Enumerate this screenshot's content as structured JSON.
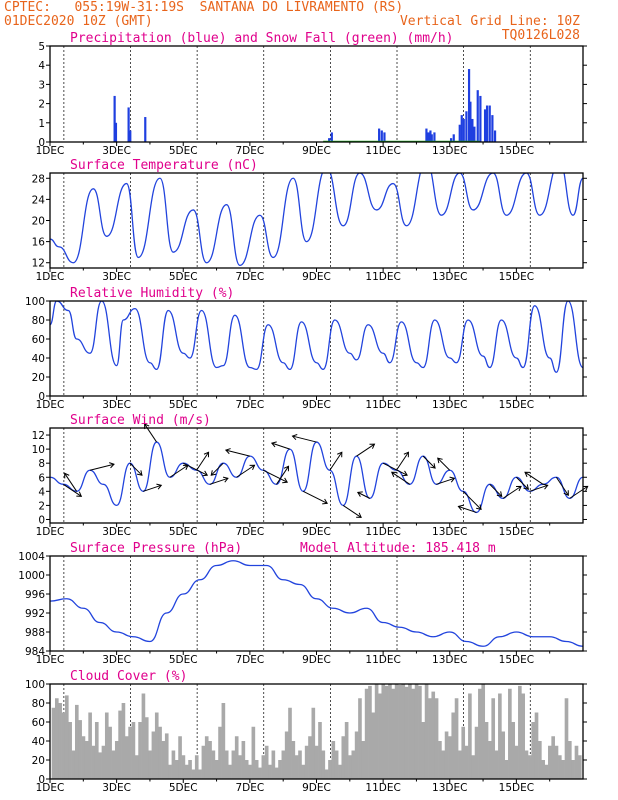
{
  "header": {
    "line1_left": "CPTEC:   055:19W-31:19S  SANTANA DO LIVRAMENTO (RS)",
    "line2_left": "01DEC2020 10Z (GMT)",
    "line2_right": "Vertical Grid Line: 10Z",
    "line3_right": "TQ0126L028"
  },
  "colors": {
    "header": "#e8641b",
    "title": "#e0008c",
    "line": "#2244dd",
    "precip": "#1f3fe0",
    "snow": "#22aa22",
    "cloud": "#a9a9a9",
    "arrow": "#000000",
    "grid": "#000000"
  },
  "x_labels": [
    "1DEC",
    "3DEC",
    "5DEC",
    "7DEC",
    "9DEC",
    "11DEC",
    "13DEC",
    "15DEC"
  ],
  "chart_data": [
    {
      "type": "bar",
      "title": "Precipitation (blue) and Snow Fall (green) (mm/h)",
      "ylim": [
        0,
        5
      ],
      "yticks": [
        "0",
        "1",
        "2",
        "3",
        "4",
        "5"
      ],
      "x_unit": "days since 01DEC 00Z",
      "series": [
        {
          "name": "Precipitation",
          "x": [
            1.94,
            1.98,
            2.36,
            2.41,
            2.86,
            8.38,
            8.46,
            9.88,
            9.96,
            10.04,
            11.3,
            11.36,
            11.42,
            11.46,
            11.54,
            12.04,
            12.12,
            12.3,
            12.36,
            12.42,
            12.5,
            12.58,
            12.62,
            12.68,
            12.74,
            12.84,
            12.92,
            13.06,
            13.12,
            13.2,
            13.28,
            13.36
          ],
          "values": [
            2.4,
            1.0,
            1.8,
            0.6,
            1.3,
            0.2,
            0.5,
            0.7,
            0.6,
            0.5,
            0.7,
            0.5,
            0.6,
            0.4,
            0.5,
            0.2,
            0.4,
            0.9,
            1.4,
            1.2,
            1.6,
            3.8,
            2.1,
            1.2,
            0.8,
            2.7,
            2.4,
            1.7,
            1.9,
            1.9,
            1.4,
            0.6
          ]
        },
        {
          "name": "Snow Fall",
          "x": [],
          "values": []
        }
      ]
    },
    {
      "type": "line",
      "title": "Surface Temperature (nC)",
      "ylim": [
        11,
        29
      ],
      "yticks": [
        "12",
        "16",
        "20",
        "24",
        "28"
      ],
      "x_unit": "days since 01DEC 00Z",
      "x": [
        0,
        0.27,
        0.7,
        1.3,
        1.7,
        2.3,
        2.65,
        3.3,
        3.7,
        4.3,
        4.7,
        5.3,
        5.7,
        6.3,
        6.7,
        7.3,
        7.7,
        8.3,
        8.8,
        9.3,
        9.8,
        10.3,
        10.7,
        11.3,
        11.75,
        12.3,
        12.7,
        13.3,
        13.7,
        14.3,
        14.7,
        15.3,
        15.7,
        16.0
      ],
      "values": [
        16.5,
        15,
        12,
        26,
        17,
        27,
        13,
        28,
        14,
        22,
        12,
        23,
        11.5,
        21,
        13,
        28,
        16,
        30,
        19,
        29,
        22,
        27,
        19,
        31,
        21,
        29,
        22,
        29,
        21,
        29,
        21,
        31,
        21,
        28
      ]
    },
    {
      "type": "line",
      "title": "Relative Humidity (%)",
      "ylim": [
        0,
        100
      ],
      "yticks": [
        "0",
        "20",
        "40",
        "60",
        "80",
        "100"
      ],
      "x_unit": "days since 01DEC 00Z",
      "x": [
        0,
        0.2,
        0.55,
        0.8,
        1.2,
        1.55,
        2.0,
        2.2,
        2.55,
        3.0,
        3.2,
        3.55,
        4.0,
        4.2,
        4.55,
        5.0,
        5.2,
        5.55,
        6.0,
        6.2,
        6.55,
        7.0,
        7.2,
        7.55,
        8.0,
        8.2,
        8.55,
        9.0,
        9.2,
        9.55,
        10.0,
        10.2,
        10.55,
        11.0,
        11.2,
        11.55,
        12.0,
        12.2,
        12.55,
        13.0,
        13.2,
        13.55,
        14.0,
        14.2,
        14.55,
        15.0,
        15.2,
        15.55,
        16.0
      ],
      "values": [
        75,
        100,
        90,
        60,
        45,
        100,
        32,
        80,
        92,
        35,
        28,
        90,
        45,
        40,
        90,
        30,
        32,
        85,
        30,
        28,
        75,
        35,
        28,
        78,
        35,
        28,
        80,
        45,
        38,
        75,
        45,
        35,
        78,
        35,
        30,
        80,
        40,
        35,
        80,
        42,
        30,
        80,
        40,
        30,
        95,
        40,
        25,
        100,
        30
      ]
    },
    {
      "type": "line",
      "title": "Surface Wind (m/s)",
      "ylim": [
        -0.5,
        13
      ],
      "yticks": [
        "0",
        "2",
        "4",
        "6",
        "8",
        "10",
        "12"
      ],
      "x_unit": "days since 01DEC 00Z",
      "x": [
        0,
        0.4,
        0.8,
        1.2,
        1.6,
        2.0,
        2.4,
        2.8,
        3.2,
        3.6,
        4.0,
        4.4,
        4.8,
        5.2,
        5.6,
        6.0,
        6.4,
        6.8,
        7.2,
        7.6,
        8.0,
        8.4,
        8.8,
        9.2,
        9.6,
        10.0,
        10.4,
        10.8,
        11.2,
        11.6,
        12.0,
        12.4,
        12.8,
        13.2,
        13.6,
        14.0,
        14.4,
        14.8,
        15.2,
        15.6,
        16.0
      ],
      "values": [
        6,
        5,
        4,
        7,
        5,
        2,
        8,
        4,
        11,
        6,
        8,
        7,
        5,
        8,
        6,
        9,
        7,
        5,
        10,
        4,
        11,
        7,
        2,
        9,
        3,
        8,
        7,
        5,
        9,
        5,
        7,
        4,
        1,
        5,
        3,
        6,
        4,
        5,
        6,
        3,
        6
      ],
      "vectors": {
        "x": [
          0.4,
          0.8,
          1.2,
          2.4,
          2.8,
          3.2,
          3.6,
          4.0,
          4.4,
          4.8,
          5.2,
          5.6,
          6.0,
          6.4,
          6.8,
          7.2,
          7.6,
          8.0,
          8.4,
          8.8,
          9.2,
          9.6,
          10.0,
          10.4,
          10.8,
          11.2,
          11.6,
          12.0,
          12.4,
          12.8,
          13.2,
          13.6,
          14.0,
          14.4,
          14.8,
          15.2,
          15.6
        ],
        "u": [
          3,
          -2,
          4,
          2,
          3,
          -2,
          3,
          4,
          2,
          3,
          -2,
          3,
          -4,
          4,
          2,
          -3,
          4,
          -4,
          2,
          3,
          3,
          -2,
          4,
          2,
          -3,
          2,
          3,
          -2,
          3,
          -3,
          2,
          3,
          2,
          3,
          -3,
          2,
          3
        ],
        "v": [
          -2,
          3,
          1,
          -2,
          1,
          3,
          2,
          -2,
          3,
          1,
          -2,
          2,
          1,
          -2,
          3,
          1,
          -2,
          1,
          3,
          -2,
          2,
          1,
          -2,
          3,
          2,
          -2,
          1,
          2,
          -3,
          1,
          -2,
          2,
          -2,
          1,
          2,
          -3,
          2
        ]
      }
    },
    {
      "type": "line",
      "title": "Surface Pressure (hPa)",
      "annotation": "Model Altitude: 185.418  m",
      "ylim": [
        984,
        1004
      ],
      "yticks": [
        "984",
        "988",
        "992",
        "996",
        "1000",
        "1004"
      ],
      "x_unit": "days since 01DEC 00Z",
      "x": [
        0,
        0.5,
        1.0,
        1.5,
        2.0,
        2.5,
        3.0,
        3.5,
        4.0,
        4.5,
        5.0,
        5.5,
        6.0,
        6.5,
        7.0,
        7.5,
        8.0,
        8.5,
        9.0,
        9.5,
        10.0,
        10.5,
        11.0,
        11.5,
        12.0,
        12.5,
        13.0,
        13.5,
        14.0,
        14.5,
        15.0,
        15.5,
        16.0
      ],
      "values": [
        994.5,
        995,
        993,
        990,
        988,
        987,
        986,
        992,
        996,
        999,
        1002,
        1003,
        1002,
        1002,
        999,
        998,
        995,
        993,
        992,
        993,
        990,
        989,
        988,
        987,
        988,
        986,
        985,
        987,
        988,
        987,
        987,
        986,
        985
      ]
    },
    {
      "type": "bar",
      "title": "Cloud Cover (%)",
      "ylim": [
        0,
        100
      ],
      "yticks": [
        "0",
        "20",
        "40",
        "60",
        "80",
        "100"
      ],
      "x_unit": "days since 01DEC 00Z",
      "x": [
        0.1,
        0.2,
        0.3,
        0.4,
        0.5,
        0.6,
        0.7,
        0.8,
        0.9,
        1.0,
        1.1,
        1.2,
        1.3,
        1.4,
        1.5,
        1.6,
        1.7,
        1.8,
        1.9,
        2.0,
        2.1,
        2.2,
        2.3,
        2.4,
        2.5,
        2.6,
        2.7,
        2.8,
        2.9,
        3.0,
        3.1,
        3.2,
        3.3,
        3.4,
        3.5,
        3.6,
        3.7,
        3.8,
        3.9,
        4.0,
        4.1,
        4.2,
        4.3,
        4.4,
        4.5,
        4.6,
        4.7,
        4.8,
        4.9,
        5.0,
        5.1,
        5.2,
        5.3,
        5.4,
        5.5,
        5.6,
        5.7,
        5.8,
        5.9,
        6.0,
        6.1,
        6.2,
        6.3,
        6.4,
        6.5,
        6.6,
        6.7,
        6.8,
        6.9,
        7.0,
        7.1,
        7.2,
        7.3,
        7.4,
        7.5,
        7.6,
        7.7,
        7.8,
        7.9,
        8.0,
        8.1,
        8.2,
        8.3,
        8.4,
        8.5,
        8.6,
        8.7,
        8.8,
        8.9,
        9.0,
        9.1,
        9.2,
        9.3,
        9.4,
        9.5,
        9.6,
        9.7,
        9.8,
        9.9,
        10.0,
        10.1,
        10.2,
        10.3,
        10.4,
        10.5,
        10.6,
        10.7,
        10.8,
        10.9,
        11.0,
        11.1,
        11.2,
        11.3,
        11.4,
        11.5,
        11.6,
        11.7,
        11.8,
        11.9,
        12.0,
        12.1,
        12.2,
        12.3,
        12.4,
        12.5,
        12.6,
        12.7,
        12.8,
        12.9,
        13.0,
        13.1,
        13.2,
        13.3,
        13.4,
        13.5,
        13.6,
        13.7,
        13.8,
        13.9,
        14.0,
        14.1,
        14.2,
        14.3,
        14.4,
        14.5,
        14.6,
        14.7,
        14.8,
        14.9,
        15.0,
        15.1,
        15.2,
        15.3,
        15.4,
        15.5,
        15.6,
        15.7,
        15.8,
        15.9
      ],
      "values": [
        75,
        85,
        80,
        70,
        88,
        60,
        30,
        78,
        62,
        45,
        40,
        70,
        35,
        60,
        28,
        35,
        70,
        55,
        30,
        40,
        72,
        80,
        45,
        55,
        60,
        25,
        60,
        90,
        65,
        30,
        50,
        70,
        55,
        40,
        48,
        15,
        30,
        20,
        45,
        25,
        15,
        20,
        10,
        25,
        10,
        35,
        45,
        40,
        30,
        20,
        55,
        80,
        30,
        15,
        30,
        45,
        25,
        40,
        20,
        15,
        55,
        20,
        12,
        25,
        35,
        15,
        30,
        12,
        20,
        30,
        50,
        75,
        40,
        25,
        30,
        15,
        35,
        45,
        75,
        35,
        60,
        30,
        10,
        20,
        40,
        30,
        15,
        45,
        60,
        25,
        30,
        50,
        85,
        40,
        95,
        98,
        70,
        100,
        90,
        100,
        98,
        100,
        95,
        100,
        99,
        100,
        97,
        100,
        95,
        100,
        98,
        60,
        100,
        85,
        92,
        85,
        40,
        30,
        50,
        45,
        70,
        85,
        30,
        55,
        35,
        90,
        25,
        55,
        95,
        100,
        60,
        40,
        85,
        30,
        90,
        50,
        20,
        95,
        60,
        35,
        98,
        90,
        30,
        25,
        60,
        70,
        40,
        20,
        15,
        35,
        45,
        35,
        25,
        20,
        85,
        40,
        20,
        35,
        25
      ]
    }
  ]
}
